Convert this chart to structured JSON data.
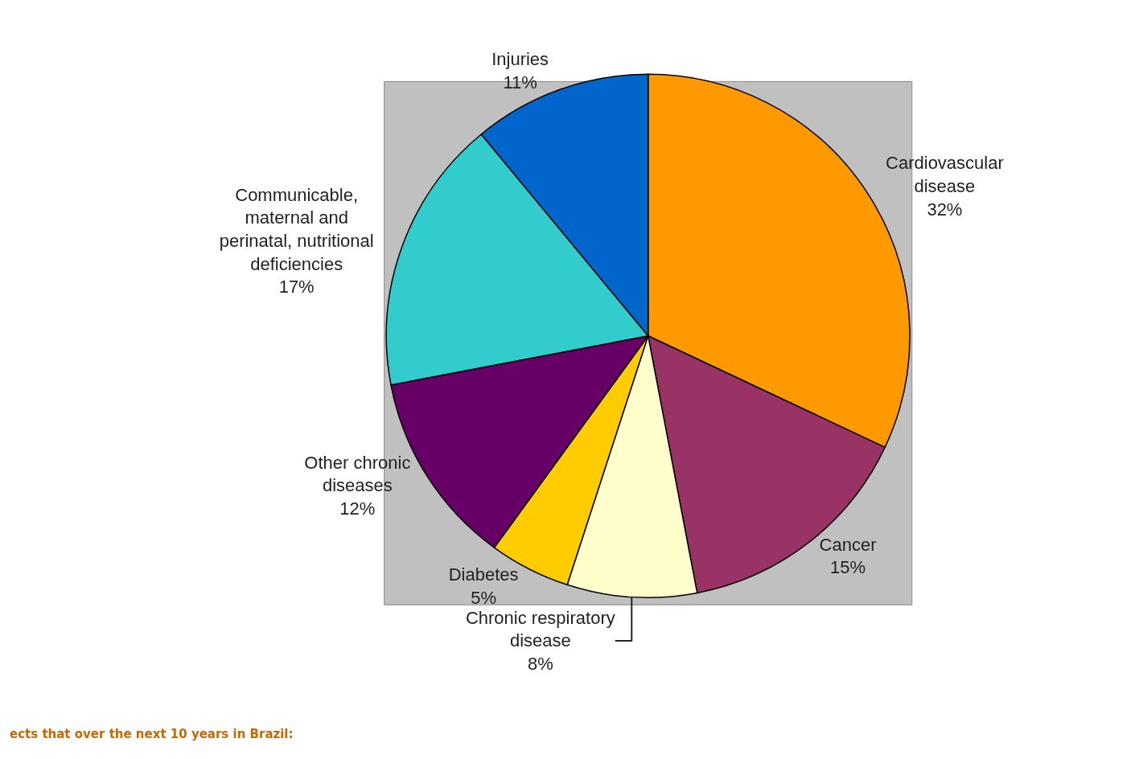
{
  "chart_data": {
    "type": "pie",
    "categories": [
      "Cardiovascular\ndisease",
      "Cancer",
      "Chronic respiratory\ndisease",
      "Diabetes",
      "Other chronic\ndiseases",
      "Communicable,\nmaternal and\nperinatal, nutritional\ndeficiencies",
      "Injuries"
    ],
    "values": [
      32,
      15,
      8,
      5,
      12,
      17,
      11
    ],
    "value_labels": [
      "32%",
      "15%",
      "8%",
      "5%",
      "12%",
      "17%",
      "11%"
    ],
    "colors": [
      "#ff9900",
      "#993366",
      "#ffffcc",
      "#ffcc00",
      "#660066",
      "#33cccc",
      "#0066cc"
    ],
    "annotations": [
      "ects that over the next 10 years in Brazil:"
    ],
    "legend": false
  }
}
